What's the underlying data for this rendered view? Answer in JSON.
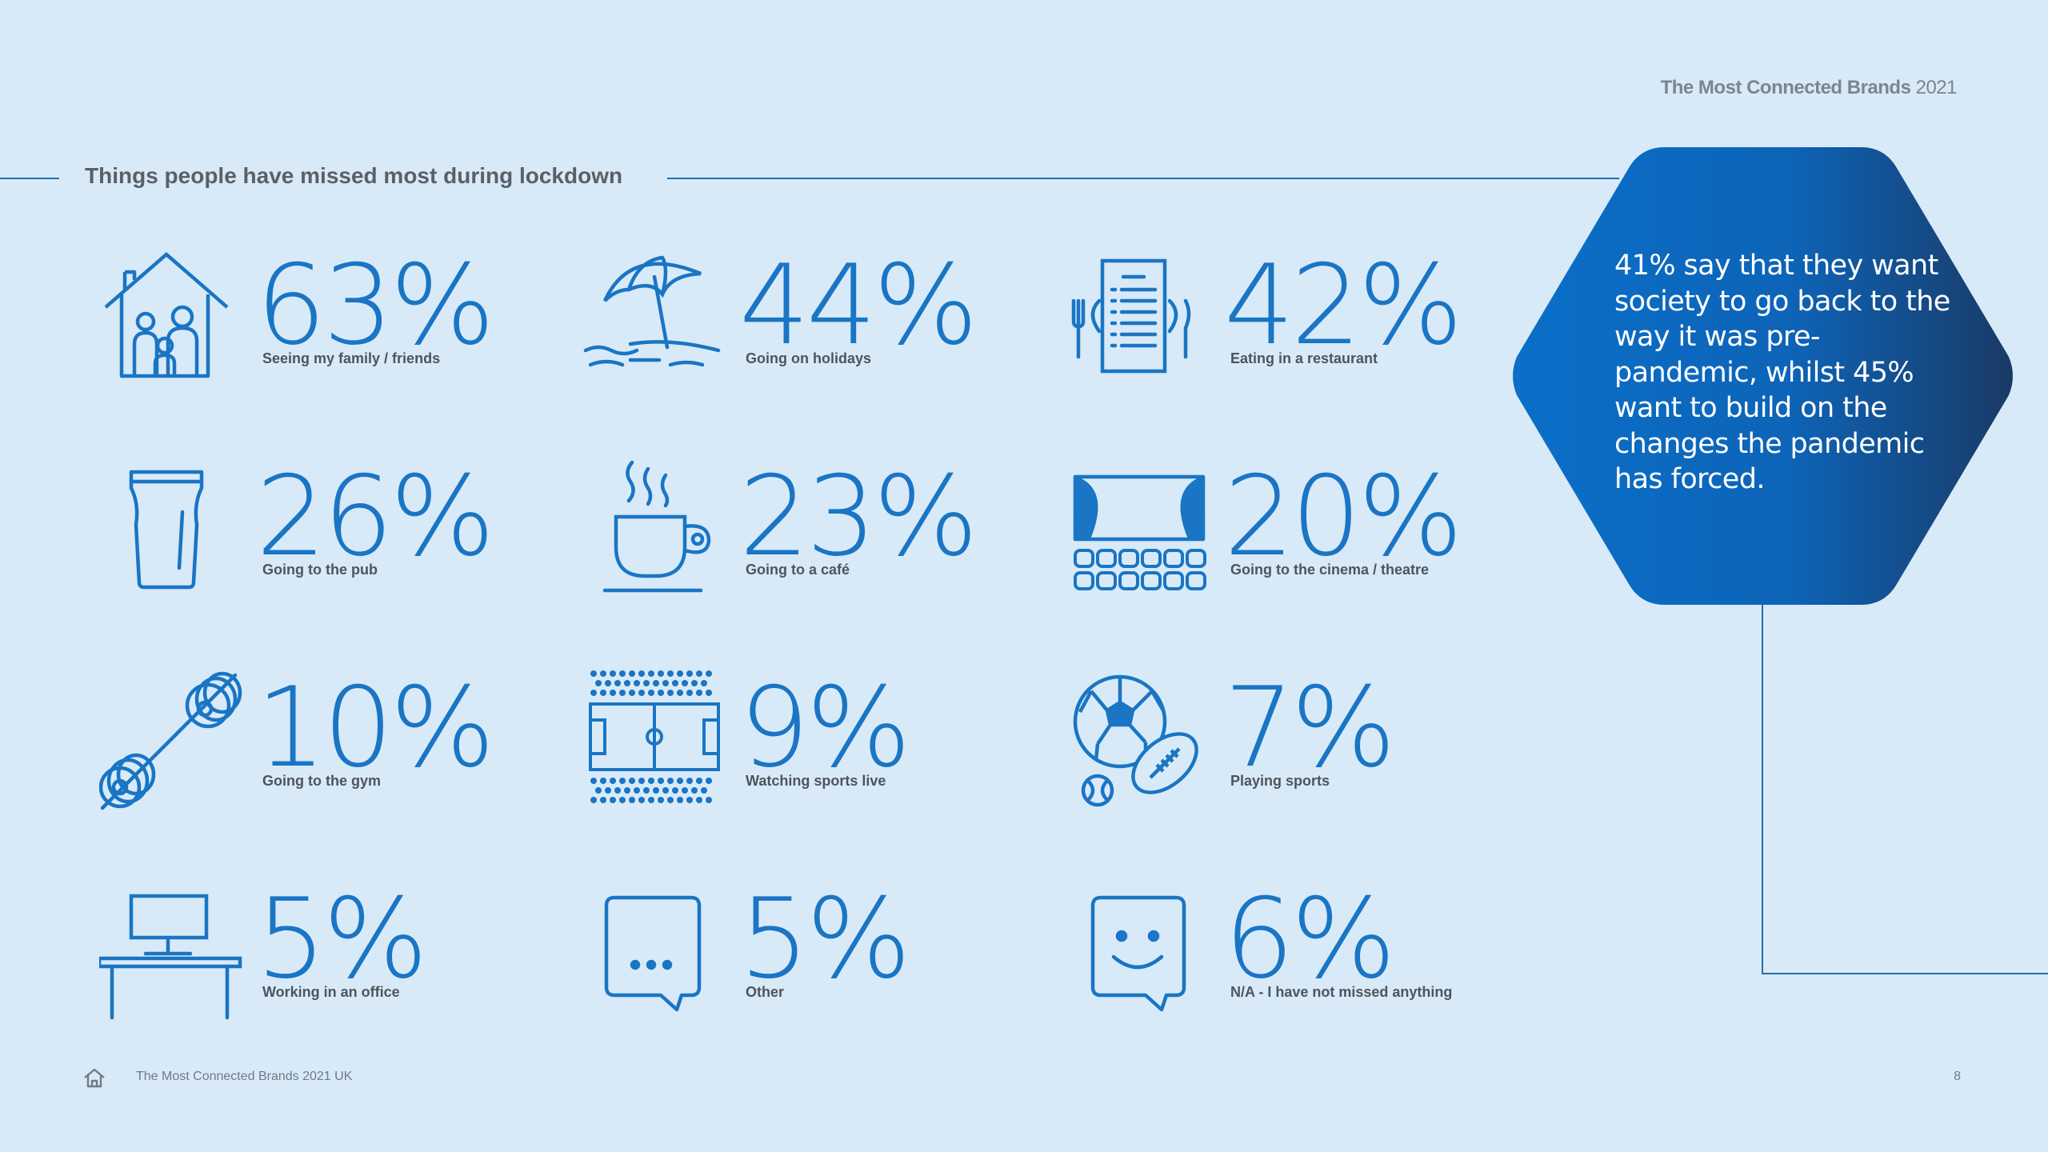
{
  "header": {
    "brand_bold": "The Most Connected Brands",
    "brand_year": "2021"
  },
  "section_title": "Things people have missed most during lockdown",
  "callout": {
    "text": "41% say that they want society to go back to the way it was pre-pandemic, whilst 45% want to build on the changes the pandemic has forced."
  },
  "stats": [
    {
      "value": "63%",
      "label": "Seeing my family / friends",
      "icon": "family-house-icon"
    },
    {
      "value": "44%",
      "label": "Going on holidays",
      "icon": "beach-umbrella-icon"
    },
    {
      "value": "42%",
      "label": "Eating in a restaurant",
      "icon": "restaurant-menu-icon"
    },
    {
      "value": "26%",
      "label": "Going to the pub",
      "icon": "pint-glass-icon"
    },
    {
      "value": "23%",
      "label": "Going to a café",
      "icon": "coffee-cup-icon"
    },
    {
      "value": "20%",
      "label": "Going to the cinema / theatre",
      "icon": "cinema-icon"
    },
    {
      "value": "10%",
      "label": "Going to the gym",
      "icon": "dumbbell-icon"
    },
    {
      "value": "9%",
      "label": "Watching sports live",
      "icon": "stadium-icon"
    },
    {
      "value": "7%",
      "label": "Playing sports",
      "icon": "sports-balls-icon"
    },
    {
      "value": "5%",
      "label": "Working in an office",
      "icon": "office-desk-icon"
    },
    {
      "value": "5%",
      "label": "Other",
      "icon": "speech-bubble-dots-icon"
    },
    {
      "value": "6%",
      "label": "N/A - I have not missed anything",
      "icon": "smiley-bubble-icon"
    }
  ],
  "footer": {
    "text": "The Most Connected Brands 2021 UK",
    "page": "8",
    "home_icon": "home-icon"
  },
  "colors": {
    "background": "#d8eaf8",
    "accent_blue": "#1a75c4",
    "hex_start": "#0a6fc8",
    "hex_end": "#1a3a66"
  }
}
